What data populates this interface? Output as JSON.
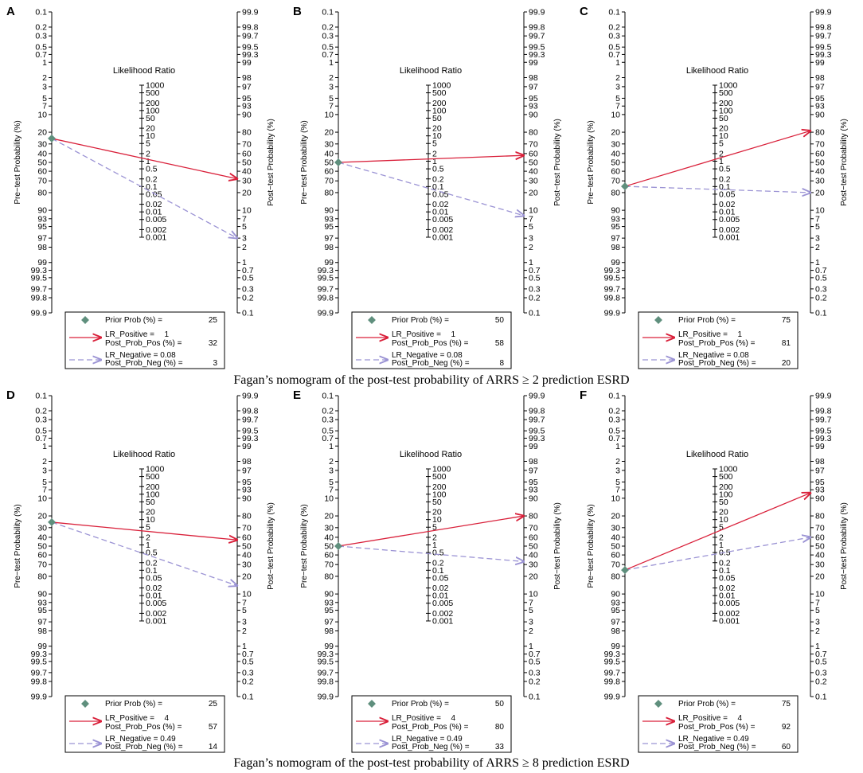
{
  "figure": {
    "captions": [
      "Fagan’s nomogram of the post-test probability of ARRS ≥ 2 prediction ESRD",
      "Fagan’s nomogram of the post-test probability of ARRS ≥ 8 prediction ESRD"
    ],
    "colors": {
      "positive": "#d9203a",
      "negative": "#9b93d4",
      "prior": "#5f8f7d",
      "axis": "#000000"
    }
  },
  "chart_data": [
    {
      "type": "nomogram",
      "panel": "A",
      "title": "Likelihood Ratio",
      "ylabel_left": "Pre−test Probability (%)",
      "ylabel_right": "Post−test Probability (%)",
      "prior_prob": 25,
      "lr_positive": 1,
      "post_prob_pos": 32,
      "lr_negative": 0.08,
      "post_prob_neg": 3,
      "legend": {
        "prior": "Prior Prob (%) =",
        "prior_value": "25",
        "lrpos": "LR_Positive =",
        "lrpos_value": "1",
        "ppos": "Post_Prob_Pos (%) =",
        "ppos_value": "32",
        "lrneg": "LR_Negative = 0.08",
        "pneg": "Post_Prob_Neg (%) =",
        "pneg_value": "3"
      }
    },
    {
      "type": "nomogram",
      "panel": "B",
      "title": "Likelihood Ratio",
      "ylabel_left": "Pre−test Probability (%)",
      "ylabel_right": "Post−test Probability (%)",
      "prior_prob": 50,
      "lr_positive": 1,
      "post_prob_pos": 58,
      "lr_negative": 0.08,
      "post_prob_neg": 8,
      "legend": {
        "prior": "Prior Prob (%) =",
        "prior_value": "50",
        "lrpos": "LR_Positive =",
        "lrpos_value": "1",
        "ppos": "Post_Prob_Pos (%) =",
        "ppos_value": "58",
        "lrneg": "LR_Negative = 0.08",
        "pneg": "Post_Prob_Neg (%) =",
        "pneg_value": "8"
      }
    },
    {
      "type": "nomogram",
      "panel": "C",
      "title": "Likelihood Ratio",
      "ylabel_left": "Pre−test Probability (%)",
      "ylabel_right": "Post−test Probability (%)",
      "prior_prob": 75,
      "lr_positive": 1,
      "post_prob_pos": 81,
      "lr_negative": 0.08,
      "post_prob_neg": 20,
      "legend": {
        "prior": "Prior Prob (%) =",
        "prior_value": "75",
        "lrpos": "LR_Positive =",
        "lrpos_value": "1",
        "ppos": "Post_Prob_Pos (%) =",
        "ppos_value": "81",
        "lrneg": "LR_Negative = 0.08",
        "pneg": "Post_Prob_Neg (%) =",
        "pneg_value": "20"
      }
    },
    {
      "type": "nomogram",
      "panel": "D",
      "title": "Likelihood Ratio",
      "ylabel_left": "Pre−test Probability (%)",
      "ylabel_right": "Post−test Probability (%)",
      "prior_prob": 25,
      "lr_positive": 4,
      "post_prob_pos": 57,
      "lr_negative": 0.49,
      "post_prob_neg": 14,
      "legend": {
        "prior": "Prior Prob (%) =",
        "prior_value": "25",
        "lrpos": "LR_Positive =",
        "lrpos_value": "4",
        "ppos": "Post_Prob_Pos (%) =",
        "ppos_value": "57",
        "lrneg": "LR_Negative = 0.49",
        "pneg": "Post_Prob_Neg (%) =",
        "pneg_value": "14"
      }
    },
    {
      "type": "nomogram",
      "panel": "E",
      "title": "Likelihood Ratio",
      "ylabel_left": "Pre−test Probability (%)",
      "ylabel_right": "Post−test Probability (%)",
      "prior_prob": 50,
      "lr_positive": 4,
      "post_prob_pos": 80,
      "lr_negative": 0.49,
      "post_prob_neg": 33,
      "legend": {
        "prior": "Prior Prob (%) =",
        "prior_value": "50",
        "lrpos": "LR_Positive =",
        "lrpos_value": "4",
        "ppos": "Post_Prob_Pos (%) =",
        "ppos_value": "80",
        "lrneg": "LR_Negative = 0.49",
        "pneg": "Post_Prob_Neg (%) =",
        "pneg_value": "33"
      }
    },
    {
      "type": "nomogram",
      "panel": "F",
      "title": "Likelihood Ratio",
      "ylabel_left": "Pre−test Probability (%)",
      "ylabel_right": "Post−test Probability (%)",
      "prior_prob": 75,
      "lr_positive": 4,
      "post_prob_pos": 92,
      "lr_negative": 0.49,
      "post_prob_neg": 60,
      "legend": {
        "prior": "Prior Prob (%) =",
        "prior_value": "75",
        "lrpos": "LR_Positive =",
        "lrpos_value": "4",
        "ppos": "Post_Prob_Pos (%) =",
        "ppos_value": "92",
        "lrneg": "LR_Negative = 0.49",
        "pneg": "Post_Prob_Neg (%) =",
        "pneg_value": "60"
      }
    }
  ],
  "axes": {
    "pre_ticks": [
      "0.1",
      "0.2",
      "0.3",
      "0.5",
      "0.7",
      "1",
      "2",
      "3",
      "5",
      "7",
      "10",
      "20",
      "30",
      "40",
      "50",
      "60",
      "70",
      "80",
      "90",
      "93",
      "95",
      "97",
      "98",
      "99",
      "99.3",
      "99.5",
      "99.7",
      "99.8",
      "99.9"
    ],
    "post_ticks": [
      "99.9",
      "99.8",
      "99.7",
      "99.5",
      "99.3",
      "99",
      "98",
      "97",
      "95",
      "93",
      "90",
      "80",
      "70",
      "60",
      "50",
      "40",
      "30",
      "20",
      "10",
      "7",
      "5",
      "3",
      "2",
      "1",
      "0.7",
      "0.5",
      "0.3",
      "0.2",
      "0.1"
    ],
    "lr_ticks": [
      "1000",
      "500",
      "200",
      "100",
      "50",
      "20",
      "10",
      "5",
      "2",
      "1",
      "0.5",
      "0.2",
      "0.1",
      "0.05",
      "0.02",
      "0.01",
      "0.005",
      "0.002",
      "0.001"
    ]
  }
}
